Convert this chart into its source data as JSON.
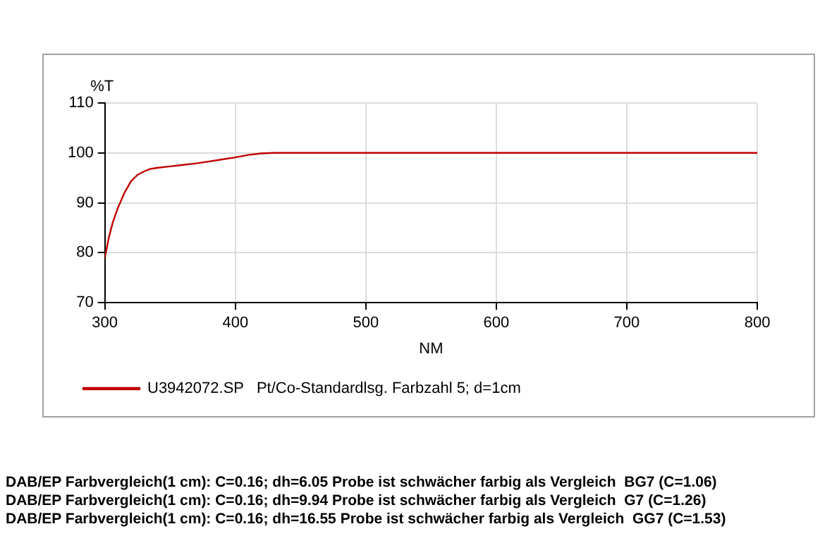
{
  "chart_data": {
    "type": "line",
    "xlabel": "NM",
    "ylabel": "%T",
    "xlim": [
      300,
      800
    ],
    "xticks": [
      300,
      400,
      500,
      600,
      700,
      800
    ],
    "ylim": [
      70,
      110
    ],
    "yticks": [
      70,
      80,
      90,
      100,
      110
    ],
    "grid": true,
    "legend": "bottom",
    "marker": "none",
    "line_style": "solid",
    "series": [
      {
        "name": "U3942072.SP   Pt/Co-Standardlsg. Farbzahl 5; d=1cm",
        "color": "#c00000",
        "x": [
          300,
          303,
          306,
          310,
          315,
          320,
          325,
          330,
          335,
          340,
          350,
          360,
          370,
          380,
          390,
          400,
          410,
          420,
          430,
          450,
          500,
          550,
          600,
          650,
          700,
          750,
          800
        ],
        "values": [
          79,
          83,
          86,
          89,
          92,
          94.3,
          95.6,
          96.3,
          96.8,
          97,
          97.3,
          97.6,
          97.9,
          98.3,
          98.7,
          99.1,
          99.6,
          99.9,
          100,
          100,
          100,
          100,
          100,
          100,
          100,
          100,
          100
        ]
      }
    ],
    "annotations": [
      "DAB/EP Farbvergleich(1 cm): C=0.16; dh=6.05 Probe ist schwächer farbig als Vergleich  BG7 (C=1.06)",
      "DAB/EP Farbvergleich(1 cm): C=0.16; dh=9.94 Probe ist schwächer farbig als Vergleich  G7 (C=1.26)",
      "DAB/EP Farbvergleich(1 cm): C=0.16; dh=16.55 Probe ist schwächer farbig als Vergleich  GG7 (C=1.53)"
    ]
  }
}
